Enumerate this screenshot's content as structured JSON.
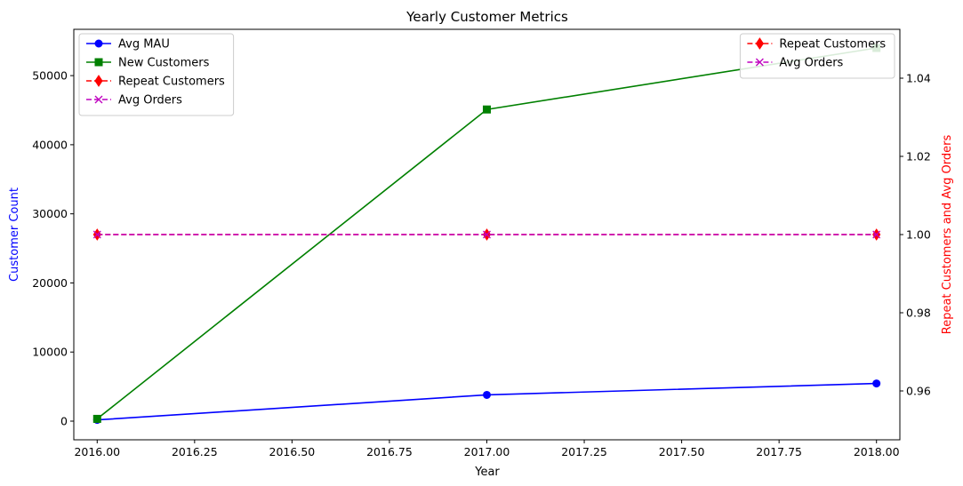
{
  "chart_data": {
    "type": "line",
    "title": "Yearly Customer Metrics",
    "xlabel": "Year",
    "ylabel_left": "Customer Count",
    "ylabel_right": "Repeat Customers and Avg Orders",
    "colors": {
      "left_label": "#0000ff",
      "right_label": "#ff0000"
    },
    "x": [
      2016,
      2017,
      2018
    ],
    "xlim": [
      2015.94,
      2018.06
    ],
    "ylim_left": [
      -2700,
      56700
    ],
    "ylim_right": [
      0.9475,
      1.0525
    ],
    "x_ticks": [
      "2016.00",
      "2016.25",
      "2016.50",
      "2016.75",
      "2017.00",
      "2017.25",
      "2017.50",
      "2017.75",
      "2018.00"
    ],
    "y_left_ticks": [
      "0",
      "10000",
      "20000",
      "30000",
      "40000",
      "50000"
    ],
    "y_right_ticks": [
      "0.96",
      "0.98",
      "1.00",
      "1.02",
      "1.04"
    ],
    "series_left": [
      {
        "name": "Avg MAU",
        "values": [
          180,
          3800,
          5450
        ],
        "color": "#0000ff",
        "marker": "circle",
        "dash": "solid"
      },
      {
        "name": "New Customers",
        "values": [
          330,
          45100,
          54000
        ],
        "color": "#008000",
        "marker": "square",
        "dash": "solid"
      }
    ],
    "series_right": [
      {
        "name": "Repeat Customers",
        "values": [
          1.0,
          1.0,
          1.0
        ],
        "color": "#ff0000",
        "marker": "thin_diamond",
        "dash": "dashed"
      },
      {
        "name": "Avg Orders",
        "values": [
          1.0,
          1.0,
          1.0
        ],
        "color": "#bf00bf",
        "marker": "x",
        "dash": "dashed"
      }
    ],
    "legend_left": "upper-left",
    "legend_right": "upper-right",
    "grid": false
  }
}
